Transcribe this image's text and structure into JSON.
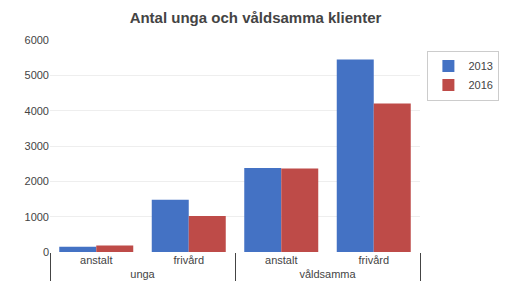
{
  "chart_data": {
    "type": "bar",
    "title": "Antal unga och våldsamma klienter",
    "categories": [
      "anstalt",
      "frivård",
      "anstalt",
      "frivård"
    ],
    "annotations": [
      "unga",
      "våldsamma"
    ],
    "series": [
      {
        "name": "2013",
        "color": "#4472C4",
        "values": [
          150,
          1480,
          2380,
          5450
        ]
      },
      {
        "name": "2016",
        "color": "#BE4B48",
        "values": [
          185,
          1020,
          2360,
          4200
        ]
      }
    ],
    "ylim": [
      0,
      6000
    ],
    "yticks": [
      0,
      1000,
      2000,
      3000,
      4000,
      5000,
      6000
    ],
    "grid": true,
    "legend": "right"
  }
}
